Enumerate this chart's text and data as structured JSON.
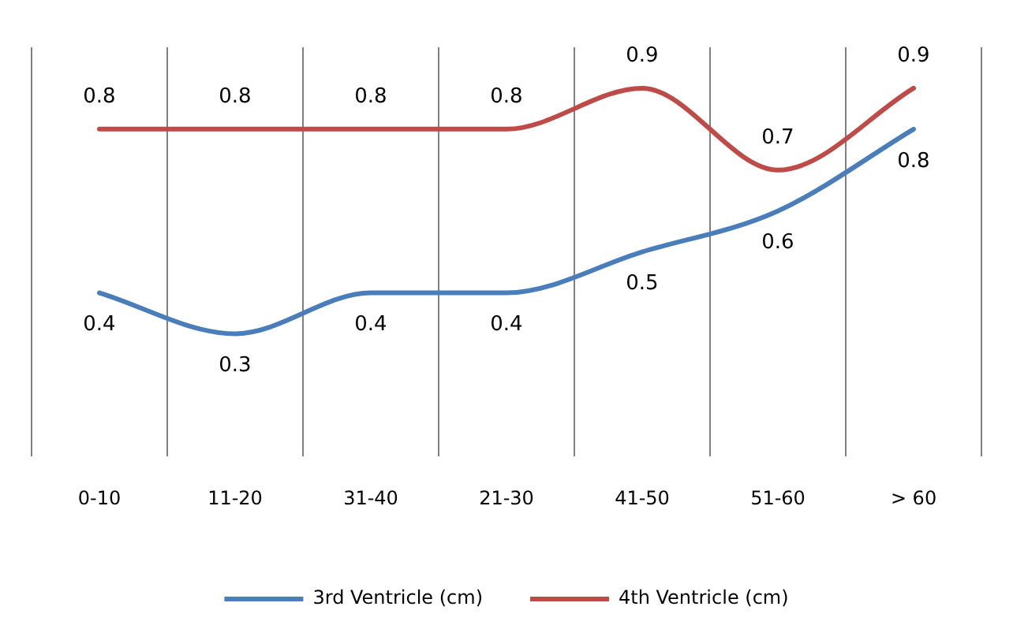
{
  "chart_data": {
    "type": "line",
    "categories": [
      "0-10",
      "11-20",
      "31-40",
      "21-30",
      "41-50",
      "51-60",
      "> 60"
    ],
    "series": [
      {
        "name": "3rd Ventricle (cm)",
        "color": "#4a7ebb",
        "values": [
          0.4,
          0.3,
          0.4,
          0.4,
          0.5,
          0.6,
          0.8
        ]
      },
      {
        "name": "4th Ventricle (cm)",
        "color": "#be4b48",
        "values": [
          0.8,
          0.8,
          0.8,
          0.8,
          0.9,
          0.7,
          0.9
        ]
      }
    ],
    "ylim": [
      0,
      1
    ],
    "grid": "x",
    "legend": "bottom",
    "tick_labels": "x",
    "data_labels": true,
    "marker": "none",
    "line_style": "solid"
  }
}
